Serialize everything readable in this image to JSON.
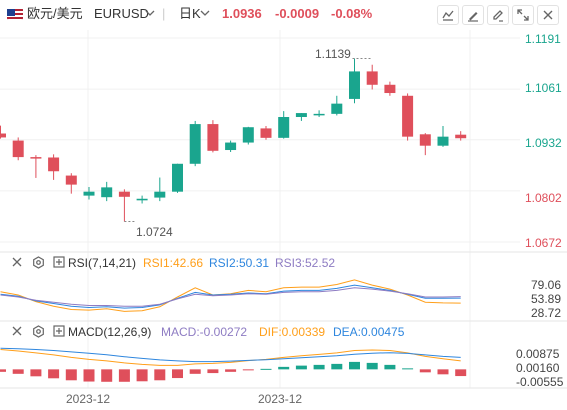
{
  "header": {
    "symbol_cn": "欧元/美元",
    "symbol": "EURUSD",
    "period": "日K",
    "price": "1.0936",
    "change": "-0.0009",
    "change_pct": "-0.08%",
    "toolbar": [
      "chart-indicator-icon",
      "draw-icon",
      "edit-icon",
      "fullscreen-icon",
      "close-icon"
    ]
  },
  "colors": {
    "up": "#1aa58e",
    "down": "#df4f5b",
    "price_label": "#1aa58e",
    "rsi1": "#ff9f1a",
    "rsi2": "#2e86de",
    "rsi3": "#8e7cc3",
    "macd": "#8e7cc3",
    "dif": "#ff9f1a",
    "dea": "#2e86de"
  },
  "main_chart": {
    "y_axis_labels": [
      "1.1191",
      "1.1061",
      "1.0932",
      "1.0802",
      "1.0672"
    ],
    "high_annotation": "1.1139",
    "low_annotation": "1.0724"
  },
  "rsi_panel": {
    "title": "RSI(7,14,21)",
    "rsi1": "RSI1:42.66",
    "rsi2": "RSI2:50.31",
    "rsi3": "RSI3:52.52",
    "y_axis_labels": [
      "79.06",
      "53.89",
      "28.72"
    ]
  },
  "macd_panel": {
    "title": "MACD(12,26,9)",
    "macd": "MACD:-0.00272",
    "dif": "DIF:0.00339",
    "dea": "DEA:0.00475",
    "y_axis_labels": [
      "0.00875",
      "0.00160",
      "-0.00555"
    ]
  },
  "x_axis_labels": [
    "2023-12",
    "2023-12"
  ],
  "chart_data": {
    "type": "candlestick",
    "y_range": [
      1.0672,
      1.1191
    ],
    "candles": [
      {
        "o": 1.0948,
        "h": 1.0968,
        "l": 1.0935,
        "c": 1.0938
      },
      {
        "o": 1.093,
        "h": 1.0938,
        "l": 1.088,
        "c": 1.0888
      },
      {
        "o": 1.0888,
        "h": 1.0893,
        "l": 1.0835,
        "c": 1.0887
      },
      {
        "o": 1.0887,
        "h": 1.0895,
        "l": 1.083,
        "c": 1.0852
      },
      {
        "o": 1.0841,
        "h": 1.0847,
        "l": 1.0795,
        "c": 1.0818
      },
      {
        "o": 1.079,
        "h": 1.0812,
        "l": 1.078,
        "c": 1.08
      },
      {
        "o": 1.0786,
        "h": 1.0825,
        "l": 1.0776,
        "c": 1.0811
      },
      {
        "o": 1.08,
        "h": 1.0806,
        "l": 1.0724,
        "c": 1.0787
      },
      {
        "o": 1.0778,
        "h": 1.079,
        "l": 1.077,
        "c": 1.0782
      },
      {
        "o": 1.0785,
        "h": 1.0836,
        "l": 1.0776,
        "c": 1.08
      },
      {
        "o": 1.08,
        "h": 1.0871,
        "l": 1.0797,
        "c": 1.0871
      },
      {
        "o": 1.0871,
        "h": 1.098,
        "l": 1.0865,
        "c": 1.0972
      },
      {
        "o": 1.0972,
        "h": 1.0982,
        "l": 1.09,
        "c": 1.0904
      },
      {
        "o": 1.0906,
        "h": 1.093,
        "l": 1.0901,
        "c": 1.0925
      },
      {
        "o": 1.0925,
        "h": 1.0965,
        "l": 1.092,
        "c": 1.0964
      },
      {
        "o": 1.0961,
        "h": 1.0967,
        "l": 1.0932,
        "c": 1.0937
      },
      {
        "o": 1.0937,
        "h": 1.1005,
        "l": 1.0935,
        "c": 1.099
      },
      {
        "o": 1.099,
        "h": 1.1,
        "l": 1.098,
        "c": 1.1
      },
      {
        "o": 1.0995,
        "h": 1.1007,
        "l": 1.099,
        "c": 1.0998
      },
      {
        "o": 1.0998,
        "h": 1.1044,
        "l": 1.0994,
        "c": 1.1024
      },
      {
        "o": 1.1036,
        "h": 1.1139,
        "l": 1.1025,
        "c": 1.1106
      },
      {
        "o": 1.1106,
        "h": 1.1123,
        "l": 1.106,
        "c": 1.1072
      },
      {
        "o": 1.1072,
        "h": 1.108,
        "l": 1.1044,
        "c": 1.1051
      },
      {
        "o": 1.1044,
        "h": 1.105,
        "l": 1.093,
        "c": 1.094
      },
      {
        "o": 1.0946,
        "h": 1.0949,
        "l": 1.0893,
        "c": 1.0917
      },
      {
        "o": 1.0917,
        "h": 1.0967,
        "l": 1.0914,
        "c": 1.094
      },
      {
        "o": 1.0945,
        "h": 1.0954,
        "l": 1.093,
        "c": 1.0936
      }
    ],
    "rsi": {
      "y_range": [
        20,
        90
      ],
      "rsi1": [
        60,
        55,
        45,
        38,
        33,
        32,
        34,
        30,
        31,
        37,
        52,
        66,
        55,
        57,
        62,
        60,
        66,
        67,
        67,
        71,
        78,
        70,
        64,
        55,
        44,
        43,
        42.66
      ],
      "rsi2": [
        56,
        53,
        46,
        42,
        38,
        36,
        37,
        35,
        36,
        40,
        50,
        59,
        55,
        56,
        58,
        57,
        61,
        62,
        62,
        65,
        70,
        66,
        62,
        56,
        50,
        50,
        50.31
      ],
      "rsi3": [
        55,
        52,
        47,
        44,
        41,
        39,
        39,
        38,
        38,
        41,
        49,
        56,
        54,
        55,
        57,
        56,
        59,
        60,
        60,
        62,
        66,
        64,
        61,
        57,
        52,
        52,
        52.52
      ]
    },
    "macd": {
      "y_range": [
        -0.0075,
        0.011
      ],
      "hist": [
        -0.001,
        -0.0018,
        -0.0028,
        -0.0036,
        -0.0044,
        -0.0049,
        -0.005,
        -0.005,
        -0.0048,
        -0.0044,
        -0.0035,
        -0.0018,
        -0.0015,
        -0.001,
        -0.0003,
        0.0002,
        0.001,
        0.0015,
        0.0018,
        0.0022,
        0.003,
        0.0026,
        0.0018,
        0.0004,
        -0.0012,
        -0.002,
        -0.0027
      ],
      "dif": [
        0.008,
        0.0074,
        0.0066,
        0.0058,
        0.0048,
        0.004,
        0.0034,
        0.0026,
        0.002,
        0.0016,
        0.0016,
        0.0022,
        0.0024,
        0.0028,
        0.0035,
        0.004,
        0.0048,
        0.0055,
        0.006,
        0.0066,
        0.0076,
        0.0078,
        0.0076,
        0.0066,
        0.0052,
        0.0043,
        0.0034
      ],
      "dea": [
        0.0085,
        0.0083,
        0.008,
        0.0076,
        0.007,
        0.0065,
        0.0059,
        0.0051,
        0.0044,
        0.0038,
        0.0034,
        0.0031,
        0.0031,
        0.0033,
        0.0036,
        0.0039,
        0.0043,
        0.0047,
        0.0051,
        0.0055,
        0.0061,
        0.0065,
        0.0067,
        0.0064,
        0.0058,
        0.0052,
        0.0048
      ]
    }
  }
}
